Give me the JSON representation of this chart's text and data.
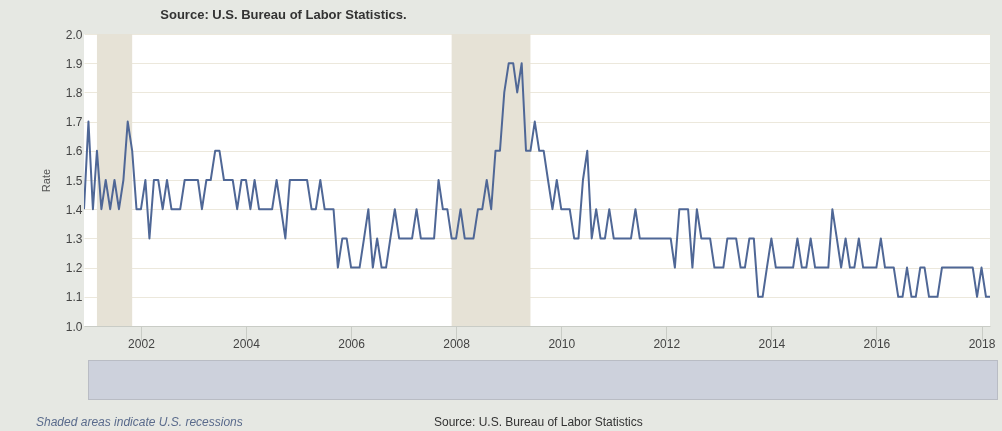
{
  "chart_data": {
    "type": "line",
    "title": "Source: U.S. Bureau of Labor Statistics.",
    "ylabel": "Rate",
    "annotations": [
      "Shaded areas indicate U.S. recessions",
      "Source: U.S. Bureau of Labor Statistics"
    ],
    "x": [
      "2000-12",
      "2001-01",
      "2001-02",
      "2001-03",
      "2001-04",
      "2001-05",
      "2001-06",
      "2001-07",
      "2001-08",
      "2001-09",
      "2001-10",
      "2001-11",
      "2001-12",
      "2002-01",
      "2002-02",
      "2002-03",
      "2002-04",
      "2002-05",
      "2002-06",
      "2002-07",
      "2002-08",
      "2002-09",
      "2002-10",
      "2002-11",
      "2002-12",
      "2003-01",
      "2003-02",
      "2003-03",
      "2003-04",
      "2003-05",
      "2003-06",
      "2003-07",
      "2003-08",
      "2003-09",
      "2003-10",
      "2003-11",
      "2003-12",
      "2004-01",
      "2004-02",
      "2004-03",
      "2004-04",
      "2004-05",
      "2004-06",
      "2004-07",
      "2004-08",
      "2004-09",
      "2004-10",
      "2004-11",
      "2004-12",
      "2005-01",
      "2005-02",
      "2005-03",
      "2005-04",
      "2005-05",
      "2005-06",
      "2005-07",
      "2005-08",
      "2005-09",
      "2005-10",
      "2005-11",
      "2005-12",
      "2006-01",
      "2006-02",
      "2006-03",
      "2006-04",
      "2006-05",
      "2006-06",
      "2006-07",
      "2006-08",
      "2006-09",
      "2006-10",
      "2006-11",
      "2006-12",
      "2007-01",
      "2007-02",
      "2007-03",
      "2007-04",
      "2007-05",
      "2007-06",
      "2007-07",
      "2007-08",
      "2007-09",
      "2007-10",
      "2007-11",
      "2007-12",
      "2008-01",
      "2008-02",
      "2008-03",
      "2008-04",
      "2008-05",
      "2008-06",
      "2008-07",
      "2008-08",
      "2008-09",
      "2008-10",
      "2008-11",
      "2008-12",
      "2009-01",
      "2009-02",
      "2009-03",
      "2009-04",
      "2009-05",
      "2009-06",
      "2009-07",
      "2009-08",
      "2009-09",
      "2009-10",
      "2009-11",
      "2009-12",
      "2010-01",
      "2010-02",
      "2010-03",
      "2010-04",
      "2010-05",
      "2010-06",
      "2010-07",
      "2010-08",
      "2010-09",
      "2010-10",
      "2010-11",
      "2010-12",
      "2011-01",
      "2011-02",
      "2011-03",
      "2011-04",
      "2011-05",
      "2011-06",
      "2011-07",
      "2011-08",
      "2011-09",
      "2011-10",
      "2011-11",
      "2011-12",
      "2012-01",
      "2012-02",
      "2012-03",
      "2012-04",
      "2012-05",
      "2012-06",
      "2012-07",
      "2012-08",
      "2012-09",
      "2012-10",
      "2012-11",
      "2012-12",
      "2013-01",
      "2013-02",
      "2013-03",
      "2013-04",
      "2013-05",
      "2013-06",
      "2013-07",
      "2013-08",
      "2013-09",
      "2013-10",
      "2013-11",
      "2013-12",
      "2014-01",
      "2014-02",
      "2014-03",
      "2014-04",
      "2014-05",
      "2014-06",
      "2014-07",
      "2014-08",
      "2014-09",
      "2014-10",
      "2014-11",
      "2014-12",
      "2015-01",
      "2015-02",
      "2015-03",
      "2015-04",
      "2015-05",
      "2015-06",
      "2015-07",
      "2015-08",
      "2015-09",
      "2015-10",
      "2015-11",
      "2015-12",
      "2016-01",
      "2016-02",
      "2016-03",
      "2016-04",
      "2016-05",
      "2016-06",
      "2016-07",
      "2016-08",
      "2016-09",
      "2016-10",
      "2016-11",
      "2016-12",
      "2017-01",
      "2017-02",
      "2017-03",
      "2017-04",
      "2017-05",
      "2017-06",
      "2017-07",
      "2017-08",
      "2017-09",
      "2017-10",
      "2017-11",
      "2017-12",
      "2018-01",
      "2018-02",
      "2018-03"
    ],
    "series": [
      {
        "color": "#4f6796",
        "values": [
          1.4,
          1.7,
          1.4,
          1.6,
          1.4,
          1.5,
          1.4,
          1.5,
          1.4,
          1.5,
          1.7,
          1.6,
          1.4,
          1.4,
          1.5,
          1.3,
          1.5,
          1.5,
          1.4,
          1.5,
          1.4,
          1.4,
          1.4,
          1.5,
          1.5,
          1.5,
          1.5,
          1.4,
          1.5,
          1.5,
          1.6,
          1.6,
          1.5,
          1.5,
          1.5,
          1.4,
          1.5,
          1.5,
          1.4,
          1.5,
          1.4,
          1.4,
          1.4,
          1.4,
          1.5,
          1.4,
          1.3,
          1.5,
          1.5,
          1.5,
          1.5,
          1.5,
          1.4,
          1.4,
          1.5,
          1.4,
          1.4,
          1.4,
          1.2,
          1.3,
          1.3,
          1.2,
          1.2,
          1.2,
          1.3,
          1.4,
          1.2,
          1.3,
          1.2,
          1.2,
          1.3,
          1.4,
          1.3,
          1.3,
          1.3,
          1.3,
          1.4,
          1.3,
          1.3,
          1.3,
          1.3,
          1.5,
          1.4,
          1.4,
          1.3,
          1.3,
          1.4,
          1.3,
          1.3,
          1.3,
          1.4,
          1.4,
          1.5,
          1.4,
          1.6,
          1.6,
          1.8,
          1.9,
          1.9,
          1.8,
          1.9,
          1.6,
          1.6,
          1.7,
          1.6,
          1.6,
          1.5,
          1.4,
          1.5,
          1.4,
          1.4,
          1.4,
          1.3,
          1.3,
          1.5,
          1.6,
          1.3,
          1.4,
          1.3,
          1.3,
          1.4,
          1.3,
          1.3,
          1.3,
          1.3,
          1.3,
          1.4,
          1.3,
          1.3,
          1.3,
          1.3,
          1.3,
          1.3,
          1.3,
          1.3,
          1.2,
          1.4,
          1.4,
          1.4,
          1.2,
          1.4,
          1.3,
          1.3,
          1.3,
          1.2,
          1.2,
          1.2,
          1.3,
          1.3,
          1.3,
          1.2,
          1.2,
          1.3,
          1.3,
          1.1,
          1.1,
          1.2,
          1.3,
          1.2,
          1.2,
          1.2,
          1.2,
          1.2,
          1.3,
          1.2,
          1.2,
          1.3,
          1.2,
          1.2,
          1.2,
          1.2,
          1.4,
          1.3,
          1.2,
          1.3,
          1.2,
          1.2,
          1.3,
          1.2,
          1.2,
          1.2,
          1.2,
          1.3,
          1.2,
          1.2,
          1.2,
          1.1,
          1.1,
          1.2,
          1.1,
          1.1,
          1.2,
          1.2,
          1.1,
          1.1,
          1.1,
          1.2,
          1.2,
          1.2,
          1.2,
          1.2,
          1.2,
          1.2,
          1.2,
          1.1,
          1.2,
          1.1,
          1.1
        ]
      }
    ],
    "xlim": [
      "2000-12",
      "2018-03"
    ],
    "xticks": [
      "2002",
      "2004",
      "2006",
      "2008",
      "2010",
      "2012",
      "2014",
      "2016",
      "2018"
    ],
    "ylim": [
      1,
      2
    ],
    "yticks": [
      {
        "value": 1,
        "label": "1.0"
      },
      1.1,
      1.2,
      1.3,
      1.4,
      1.5,
      1.6,
      1.7,
      1.8,
      1.9,
      {
        "value": 2,
        "label": "2.0"
      }
    ],
    "grid": "y",
    "bands": [
      {
        "axis": "x",
        "from": "2001-03",
        "to": "2001-11",
        "color": "#e6e2d6"
      },
      {
        "axis": "x",
        "from": "2007-12",
        "to": "2009-06",
        "color": "#e6e2d6"
      }
    ]
  }
}
